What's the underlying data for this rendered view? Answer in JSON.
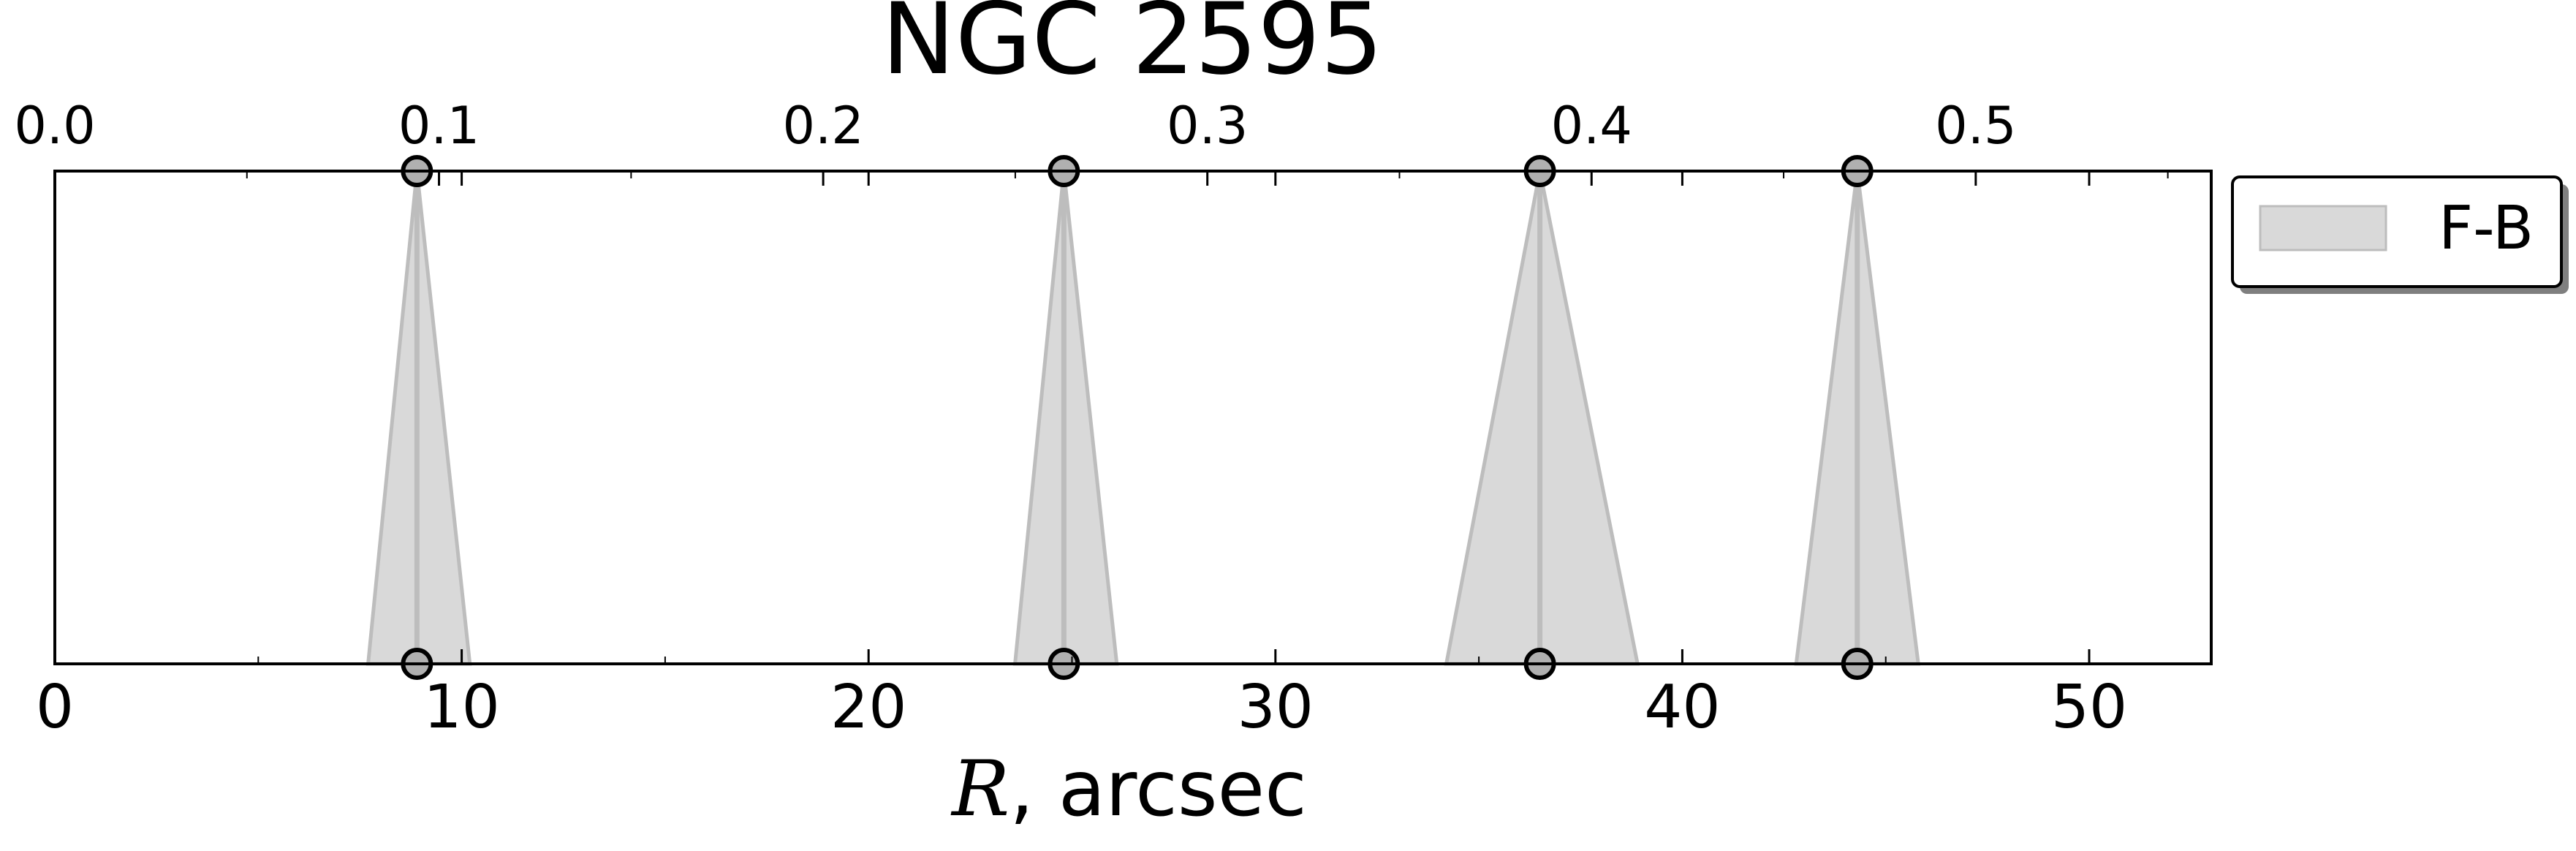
{
  "chart_data": {
    "type": "area",
    "title": "NGC 2595",
    "xlabel_symbol": "R",
    "xlabel_rest": ", arcsec",
    "x_bottom": {
      "range": [
        0,
        53
      ],
      "ticks": [
        0,
        10,
        20,
        30,
        40,
        50
      ],
      "tick_labels": [
        "0",
        "10",
        "20",
        "30",
        "40",
        "50"
      ]
    },
    "x_top": {
      "range": [
        0.0,
        0.5613
      ],
      "ticks": [
        0.0,
        0.1,
        0.2,
        0.3,
        0.4,
        0.5
      ],
      "tick_labels": [
        "0.0",
        "0.1",
        "0.2",
        "0.3",
        "0.4",
        "0.5"
      ]
    },
    "y_range": [
      0,
      1
    ],
    "grid": false,
    "legend_position": "right, outside plot, top",
    "series": [
      {
        "name": "F-B",
        "color": "#d9d9d9",
        "edge_color": "#bdbdbd",
        "features": [
          {
            "center": 8.9,
            "left": 7.7,
            "right": 10.2
          },
          {
            "center": 24.8,
            "left": 23.6,
            "right": 26.1
          },
          {
            "center": 36.5,
            "left": 34.2,
            "right": 38.9
          },
          {
            "center": 44.3,
            "left": 42.8,
            "right": 45.8
          }
        ]
      }
    ]
  }
}
